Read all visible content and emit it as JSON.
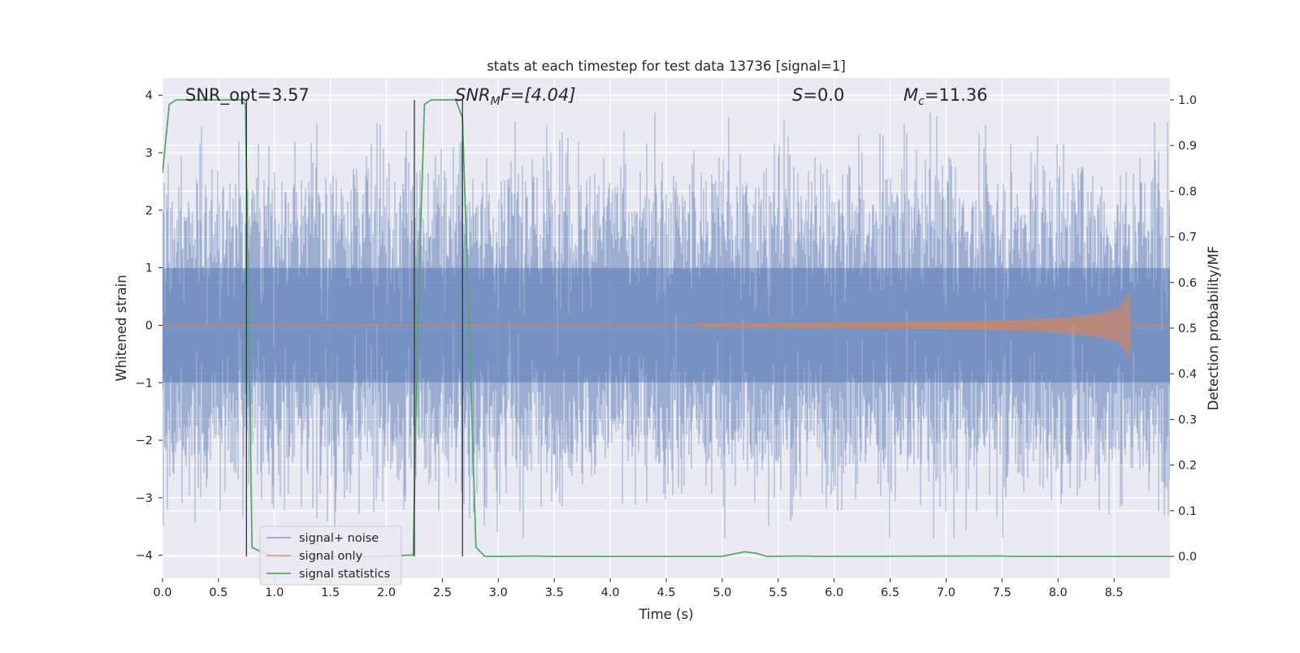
{
  "chart_data": {
    "type": "line",
    "title": "stats at each timestep for test data 13736 [signal=1]",
    "xlabel": "Time (s)",
    "ylabel": "Whitened strain",
    "ylabel_right": "Detection probability/MF",
    "xlim": [
      0.0,
      9.0
    ],
    "ylim": [
      -4.4,
      4.3
    ],
    "ylim_right": [
      -0.048,
      1.048
    ],
    "xticks": [
      "0.0",
      "0.5",
      "1.0",
      "1.5",
      "2.0",
      "2.5",
      "3.0",
      "3.5",
      "4.0",
      "4.5",
      "5.0",
      "5.5",
      "6.0",
      "6.5",
      "7.0",
      "7.5",
      "8.0",
      "8.5"
    ],
    "xtick_values": [
      0,
      0.5,
      1,
      1.5,
      2,
      2.5,
      3,
      3.5,
      4,
      4.5,
      5,
      5.5,
      6,
      6.5,
      7,
      7.5,
      8,
      8.5
    ],
    "yticks": [
      "−4",
      "−3",
      "−2",
      "−1",
      "0",
      "1",
      "2",
      "3",
      "4"
    ],
    "ytick_values": [
      -4,
      -3,
      -2,
      -1,
      0,
      1,
      2,
      3,
      4
    ],
    "yticks_right": [
      "0.0",
      "0.1",
      "0.2",
      "0.3",
      "0.4",
      "0.5",
      "0.6",
      "0.7",
      "0.8",
      "0.9",
      "1.0"
    ],
    "ytick_right_values": [
      0,
      0.1,
      0.2,
      0.3,
      0.4,
      0.5,
      0.6,
      0.7,
      0.8,
      0.9,
      1.0
    ],
    "grid": true,
    "legend_position": "lower-left",
    "annotations": {
      "snr_opt": "SNR_opt=3.57",
      "snr_mf_base": "SNR",
      "snr_mf_sub": "M",
      "snr_mf_rest": "F=[4.04]",
      "s_italic": "S",
      "s_rest": "=0.0",
      "mc_base": "M",
      "mc_sub": "c",
      "mc_rest": "=11.36"
    },
    "series": [
      {
        "name": "signal+ noise",
        "color": "#4c72b0",
        "axis": "left",
        "noise_amplitude": 3.7,
        "note_shape": "dense noisy strain filling approx -3.7 to 3.7"
      },
      {
        "name": "signal only",
        "color": "#dd8452",
        "axis": "left",
        "envelope_x": [
          4.8,
          5.5,
          6.0,
          6.5,
          7.0,
          7.5,
          7.8,
          8.0,
          8.2,
          8.4,
          8.55,
          8.64,
          8.65
        ],
        "envelope_y": [
          0.03,
          0.04,
          0.05,
          0.06,
          0.07,
          0.09,
          0.11,
          0.13,
          0.16,
          0.22,
          0.3,
          0.58,
          0.0
        ]
      },
      {
        "name": "signal statistics",
        "color": "#55a868",
        "axis": "right",
        "x": [
          0.0,
          0.06,
          0.12,
          0.7,
          0.74,
          0.76,
          0.8,
          0.88,
          1.0,
          2.0,
          2.24,
          2.28,
          2.34,
          2.4,
          2.62,
          2.68,
          2.8,
          2.88,
          3.0,
          3.3,
          3.5,
          4.0,
          5.0,
          5.2,
          5.3,
          5.4,
          5.7,
          5.9,
          7.5,
          7.6,
          9.0
        ],
        "y": [
          0.84,
          0.99,
          1.0,
          1.0,
          0.99,
          0.7,
          0.02,
          0.01,
          0.0,
          0.0,
          0.003,
          0.5,
          0.99,
          1.0,
          1.0,
          0.96,
          0.02,
          0.0,
          0.0,
          0.001,
          0.0,
          0.0,
          0.0,
          0.01,
          0.007,
          0.0,
          0.001,
          0.0,
          0.001,
          0.0,
          0.0
        ]
      }
    ],
    "vertical_markers": [
      0.75,
      2.25,
      2.68
    ],
    "vertical_marker_color": "#333333"
  }
}
